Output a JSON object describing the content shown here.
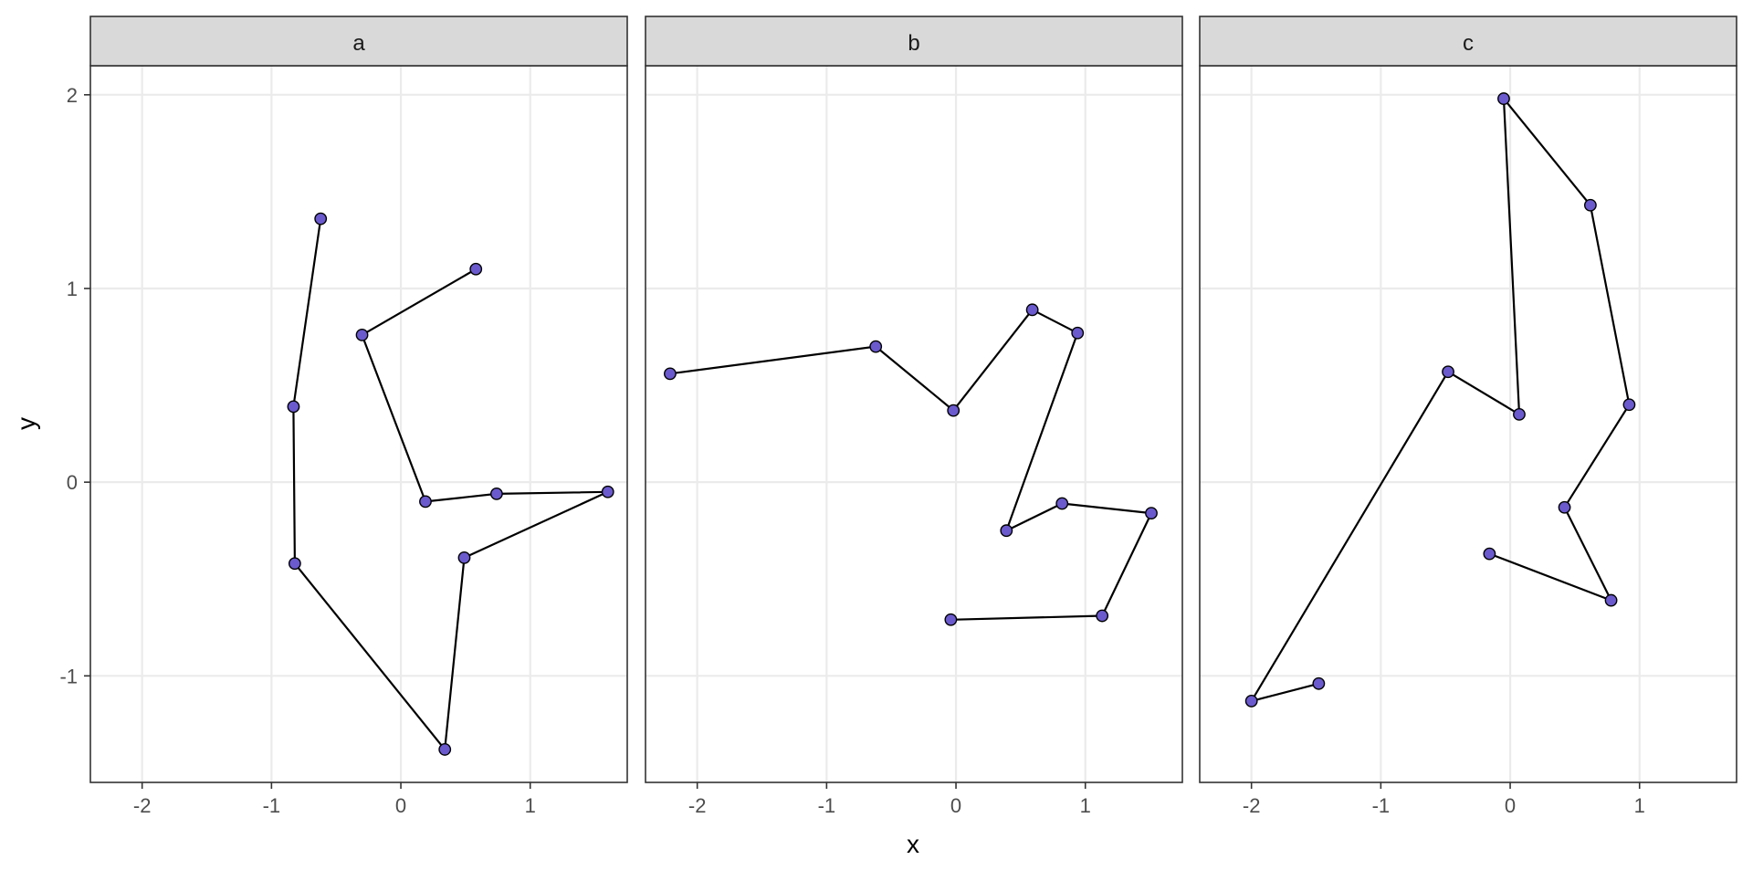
{
  "chart_data": {
    "type": "scatter",
    "subtype": "faceted-path",
    "xlabel": "x",
    "ylabel": "y",
    "xlim": [
      -2.4,
      1.75
    ],
    "ylim": [
      -1.55,
      2.15
    ],
    "x_ticks": [
      -2,
      -1,
      0,
      1
    ],
    "y_ticks": [
      -1,
      0,
      1,
      2
    ],
    "x_tick_labels": [
      "-2",
      "-1",
      "0",
      "1"
    ],
    "y_tick_labels": [
      "-1",
      "0",
      "1",
      "2"
    ],
    "grid": true,
    "colors": {
      "point_fill": "#6A5ACD",
      "point_stroke": "#000000",
      "line": "#000000",
      "strip_bg": "#D9D9D9",
      "grid": "#EBEBEB",
      "panel_border": "#333333",
      "tick_label": "#4D4D4D"
    },
    "facets": [
      {
        "label": "a",
        "points": [
          {
            "x": 0.58,
            "y": 1.1
          },
          {
            "x": -0.3,
            "y": 0.76
          },
          {
            "x": 0.19,
            "y": -0.1
          },
          {
            "x": 0.74,
            "y": -0.06
          },
          {
            "x": 1.6,
            "y": -0.05
          },
          {
            "x": 0.49,
            "y": -0.39
          },
          {
            "x": 0.34,
            "y": -1.38
          },
          {
            "x": -0.82,
            "y": -0.42
          },
          {
            "x": -0.83,
            "y": 0.39
          },
          {
            "x": -0.62,
            "y": 1.36
          }
        ]
      },
      {
        "label": "b",
        "points": [
          {
            "x": -2.21,
            "y": 0.56
          },
          {
            "x": -0.62,
            "y": 0.7
          },
          {
            "x": -0.02,
            "y": 0.37
          },
          {
            "x": 0.59,
            "y": 0.89
          },
          {
            "x": 0.94,
            "y": 0.77
          },
          {
            "x": 0.39,
            "y": -0.25
          },
          {
            "x": 0.82,
            "y": -0.11
          },
          {
            "x": 1.51,
            "y": -0.16
          },
          {
            "x": 1.13,
            "y": -0.69
          },
          {
            "x": -0.04,
            "y": -0.71
          }
        ]
      },
      {
        "label": "c",
        "points": [
          {
            "x": -1.48,
            "y": -1.04
          },
          {
            "x": -2.0,
            "y": -1.13
          },
          {
            "x": -0.48,
            "y": 0.57
          },
          {
            "x": 0.07,
            "y": 0.35
          },
          {
            "x": -0.05,
            "y": 1.98
          },
          {
            "x": 0.62,
            "y": 1.43
          },
          {
            "x": 0.92,
            "y": 0.4
          },
          {
            "x": 0.42,
            "y": -0.13
          },
          {
            "x": 0.78,
            "y": -0.61
          },
          {
            "x": -0.16,
            "y": -0.37
          }
        ]
      }
    ]
  }
}
